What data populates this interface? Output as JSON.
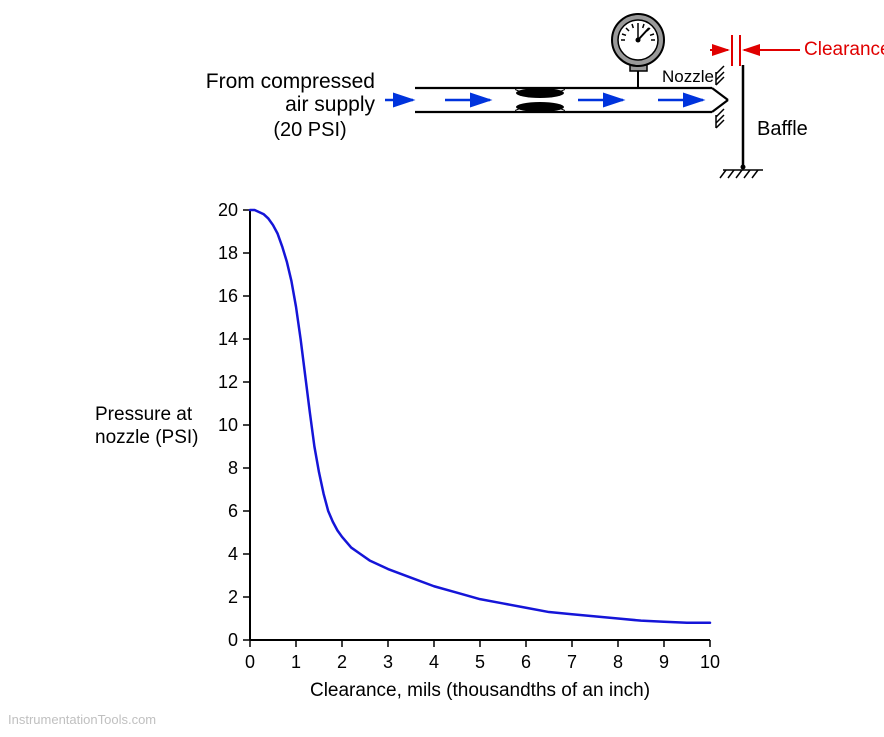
{
  "diagram": {
    "supply_label_line1": "From compressed",
    "supply_label_line2": "air supply",
    "supply_pressure": "(20 PSI)",
    "nozzle_label": "Nozzle",
    "baffle_label": "Baffle",
    "clearance_label": "Clearance",
    "colors": {
      "text": "#000000",
      "clearance_text": "#e00000",
      "arrow": "#0033dd",
      "clearance_arrow": "#e00000",
      "pipe_stroke": "#000000",
      "gauge_body": "#9a9a9a",
      "gauge_face": "#ffffff"
    }
  },
  "chart": {
    "type": "line",
    "xlabel": "Clearance, mils (thousandths of an inch)",
    "ylabel_line1": "Pressure at",
    "ylabel_line2": "nozzle (PSI)",
    "xlim": [
      0,
      10
    ],
    "ylim": [
      0,
      20
    ],
    "xtick_step": 1,
    "ytick_step": 2,
    "xticks": [
      0,
      1,
      2,
      3,
      4,
      5,
      6,
      7,
      8,
      9,
      10
    ],
    "yticks": [
      0,
      2,
      4,
      6,
      8,
      10,
      12,
      14,
      16,
      18,
      20
    ],
    "line_color": "#1515d8",
    "line_width": 2.5,
    "axis_color": "#000000",
    "tick_color": "#000000",
    "text_color": "#000000",
    "background_color": "#ffffff",
    "label_fontsize": 19,
    "tick_fontsize": 18,
    "data": [
      {
        "x": 0.0,
        "y": 20.0
      },
      {
        "x": 0.1,
        "y": 20.0
      },
      {
        "x": 0.2,
        "y": 19.9
      },
      {
        "x": 0.3,
        "y": 19.8
      },
      {
        "x": 0.4,
        "y": 19.6
      },
      {
        "x": 0.5,
        "y": 19.3
      },
      {
        "x": 0.6,
        "y": 18.9
      },
      {
        "x": 0.7,
        "y": 18.3
      },
      {
        "x": 0.8,
        "y": 17.6
      },
      {
        "x": 0.9,
        "y": 16.7
      },
      {
        "x": 1.0,
        "y": 15.5
      },
      {
        "x": 1.1,
        "y": 14.0
      },
      {
        "x": 1.2,
        "y": 12.3
      },
      {
        "x": 1.3,
        "y": 10.6
      },
      {
        "x": 1.4,
        "y": 9.0
      },
      {
        "x": 1.5,
        "y": 7.8
      },
      {
        "x": 1.6,
        "y": 6.8
      },
      {
        "x": 1.7,
        "y": 6.0
      },
      {
        "x": 1.8,
        "y": 5.5
      },
      {
        "x": 1.9,
        "y": 5.1
      },
      {
        "x": 2.0,
        "y": 4.8
      },
      {
        "x": 2.2,
        "y": 4.3
      },
      {
        "x": 2.4,
        "y": 4.0
      },
      {
        "x": 2.6,
        "y": 3.7
      },
      {
        "x": 2.8,
        "y": 3.5
      },
      {
        "x": 3.0,
        "y": 3.3
      },
      {
        "x": 3.5,
        "y": 2.9
      },
      {
        "x": 4.0,
        "y": 2.5
      },
      {
        "x": 4.5,
        "y": 2.2
      },
      {
        "x": 5.0,
        "y": 1.9
      },
      {
        "x": 5.5,
        "y": 1.7
      },
      {
        "x": 6.0,
        "y": 1.5
      },
      {
        "x": 6.5,
        "y": 1.3
      },
      {
        "x": 7.0,
        "y": 1.2
      },
      {
        "x": 7.5,
        "y": 1.1
      },
      {
        "x": 8.0,
        "y": 1.0
      },
      {
        "x": 8.5,
        "y": 0.9
      },
      {
        "x": 9.0,
        "y": 0.85
      },
      {
        "x": 9.5,
        "y": 0.8
      },
      {
        "x": 10.0,
        "y": 0.8
      }
    ]
  },
  "watermark": "InstrumentationTools.com"
}
